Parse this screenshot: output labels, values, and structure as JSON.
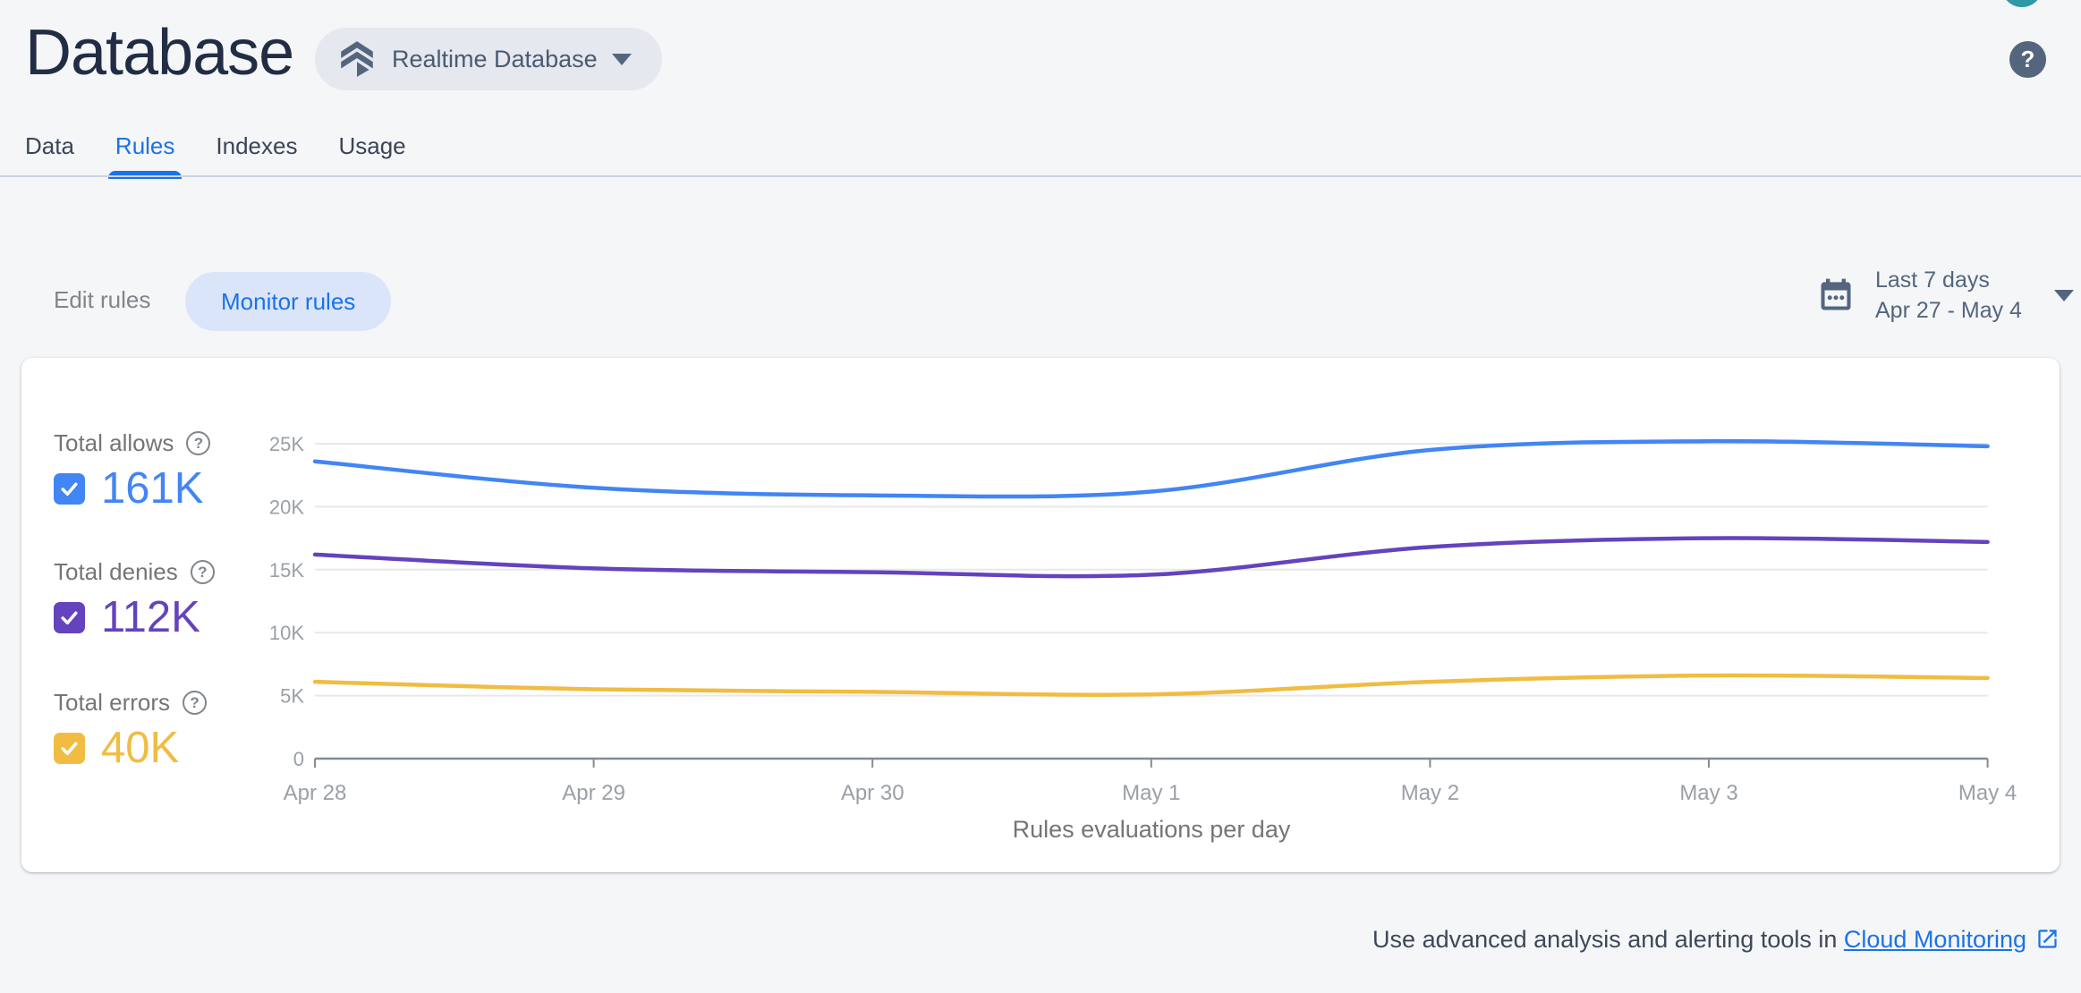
{
  "header": {
    "title": "Database",
    "product_selector_label": "Realtime Database",
    "help_glyph": "?"
  },
  "tabs": [
    {
      "label": "Data"
    },
    {
      "label": "Rules"
    },
    {
      "label": "Indexes"
    },
    {
      "label": "Usage"
    }
  ],
  "active_tab": "Rules",
  "controls": {
    "edit_rules_label": "Edit rules",
    "monitor_rules_label": "Monitor rules",
    "date_range": {
      "primary": "Last 7 days",
      "secondary": "Apr 27 - May 4"
    }
  },
  "legend": {
    "help_glyph": "?",
    "items": [
      {
        "label": "Total allows",
        "value": "161K",
        "color": "#4285F4",
        "checked": true
      },
      {
        "label": "Total denies",
        "value": "112K",
        "color": "#6443BD",
        "checked": true
      },
      {
        "label": "Total errors",
        "value": "40K",
        "color": "#F0BC42",
        "checked": true
      }
    ]
  },
  "chart_data": {
    "type": "line",
    "title": "Rules evaluations per day",
    "x_labels": [
      "Apr 28",
      "Apr 29",
      "Apr 30",
      "May 1",
      "May 2",
      "May 3",
      "May 4"
    ],
    "y_tick_labels": [
      "0",
      "5K",
      "10K",
      "15K",
      "20K",
      "25K"
    ],
    "y_tick_values": [
      0,
      5000,
      10000,
      15000,
      20000,
      25000
    ],
    "ylim": [
      0,
      26500
    ],
    "grid": true,
    "legend_position": "left",
    "series": [
      {
        "name": "Total allows",
        "total": "161K",
        "color": "#4285F4",
        "values": [
          23600,
          21500,
          20900,
          21200,
          24500,
          25200,
          24800
        ]
      },
      {
        "name": "Total denies",
        "total": "112K",
        "color": "#6443BD",
        "values": [
          16200,
          15100,
          14800,
          14600,
          16800,
          17500,
          17200
        ]
      },
      {
        "name": "Total errors",
        "total": "40K",
        "color": "#F0BC42",
        "values": [
          6100,
          5500,
          5300,
          5100,
          6100,
          6600,
          6400
        ]
      }
    ]
  },
  "footer": {
    "text": "Use advanced analysis and alerting tools in",
    "link_label": "Cloud Monitoring"
  },
  "colors": {
    "accent_blue": "#1A73E8",
    "slate": "#54657E",
    "divider": "#CCD4E0",
    "grid_line": "#E8E8E8",
    "axis_line": "#848B93",
    "axis_text": "#9AA0A6",
    "label_gray": "#757575"
  }
}
